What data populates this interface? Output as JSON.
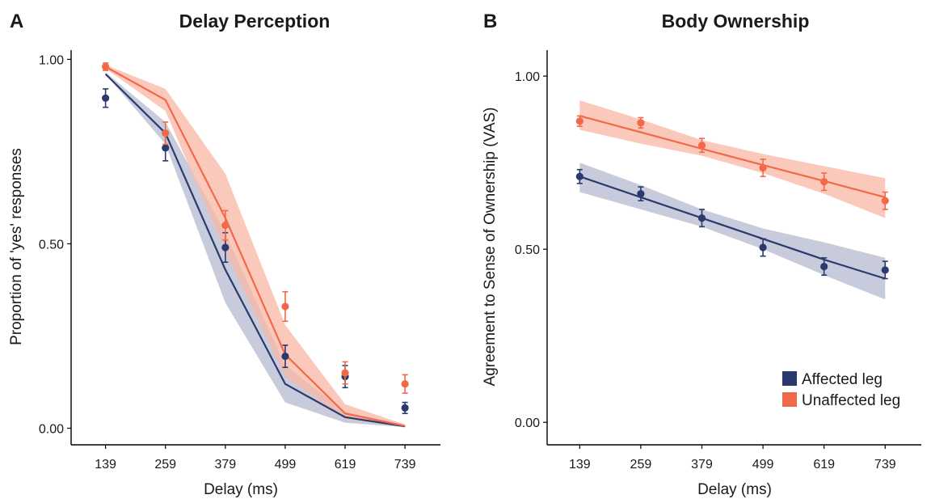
{
  "colors": {
    "affected": "#2b3a6e",
    "unaffected": "#f2694a",
    "affected_band": "#b4b9cf",
    "unaffected_band": "#f9b7a6",
    "axis": "#000000"
  },
  "legend": {
    "position": "bottom-right",
    "items": [
      {
        "label": "Affected leg",
        "color": "#2b3a6e"
      },
      {
        "label": "Unaffected leg",
        "color": "#f2694a"
      }
    ]
  },
  "chart_data": [
    {
      "panel": "A",
      "title": "Delay Perception",
      "type": "line",
      "xlabel": "Delay (ms)",
      "ylabel": "Proportion of 'yes' responses",
      "x": [
        139,
        259,
        379,
        499,
        619,
        739
      ],
      "x_tick_labels": [
        "139",
        "259",
        "379",
        "499",
        "619",
        "739"
      ],
      "y_tick_values": [
        0,
        0.5,
        1
      ],
      "y_tick_labels": [
        "0.00",
        "0.50",
        "1.00"
      ],
      "xlim": [
        70,
        810
      ],
      "ylim": [
        -0.045,
        1.025
      ],
      "grid": false,
      "series": [
        {
          "name": "Affected leg",
          "points": [
            0.895,
            0.76,
            0.49,
            0.195,
            0.14,
            0.055
          ],
          "error": [
            0.025,
            0.035,
            0.04,
            0.03,
            0.03,
            0.015
          ],
          "fit": [
            0.96,
            0.8,
            0.43,
            0.12,
            0.03,
            0.005
          ],
          "ci_low": [
            0.96,
            0.77,
            0.34,
            0.07,
            0.015,
            0.003
          ],
          "ci_high": [
            0.965,
            0.83,
            0.53,
            0.17,
            0.045,
            0.008
          ]
        },
        {
          "name": "Unaffected leg",
          "points": [
            0.98,
            0.8,
            0.55,
            0.33,
            0.15,
            0.12
          ],
          "error": [
            0.01,
            0.03,
            0.04,
            0.04,
            0.03,
            0.025
          ],
          "fit": [
            0.98,
            0.89,
            0.57,
            0.2,
            0.04,
            0.006
          ],
          "ci_low": [
            0.975,
            0.86,
            0.48,
            0.14,
            0.025,
            0.003
          ],
          "ci_high": [
            0.985,
            0.92,
            0.69,
            0.28,
            0.065,
            0.01
          ]
        }
      ]
    },
    {
      "panel": "B",
      "title": "Body Ownership",
      "type": "line",
      "xlabel": "Delay (ms)",
      "ylabel": "Agreement to Sense of Ownership (VAS)",
      "x": [
        139,
        259,
        379,
        499,
        619,
        739
      ],
      "x_tick_labels": [
        "139",
        "259",
        "379",
        "499",
        "619",
        "739"
      ],
      "y_tick_values": [
        0,
        0.5,
        1
      ],
      "y_tick_labels": [
        "0.00",
        "0.50",
        "1.00"
      ],
      "xlim": [
        75,
        810
      ],
      "ylim": [
        -0.065,
        1.075
      ],
      "grid": false,
      "series": [
        {
          "name": "Affected leg",
          "points": [
            0.71,
            0.66,
            0.59,
            0.505,
            0.45,
            0.44
          ],
          "error": [
            0.02,
            0.02,
            0.025,
            0.025,
            0.025,
            0.025
          ],
          "fit": [
            0.71,
            0.65,
            0.59,
            0.53,
            0.47,
            0.415
          ],
          "ci_low": [
            0.665,
            0.615,
            0.565,
            0.5,
            0.425,
            0.355
          ],
          "ci_high": [
            0.75,
            0.685,
            0.615,
            0.56,
            0.52,
            0.475
          ]
        },
        {
          "name": "Unaffected leg",
          "points": [
            0.87,
            0.865,
            0.8,
            0.735,
            0.695,
            0.64
          ],
          "error": [
            0.015,
            0.015,
            0.02,
            0.025,
            0.025,
            0.025
          ],
          "fit": [
            0.885,
            0.838,
            0.79,
            0.743,
            0.697,
            0.65
          ],
          "ci_low": [
            0.845,
            0.805,
            0.77,
            0.72,
            0.66,
            0.59
          ],
          "ci_high": [
            0.93,
            0.875,
            0.815,
            0.775,
            0.74,
            0.705
          ]
        }
      ]
    }
  ]
}
